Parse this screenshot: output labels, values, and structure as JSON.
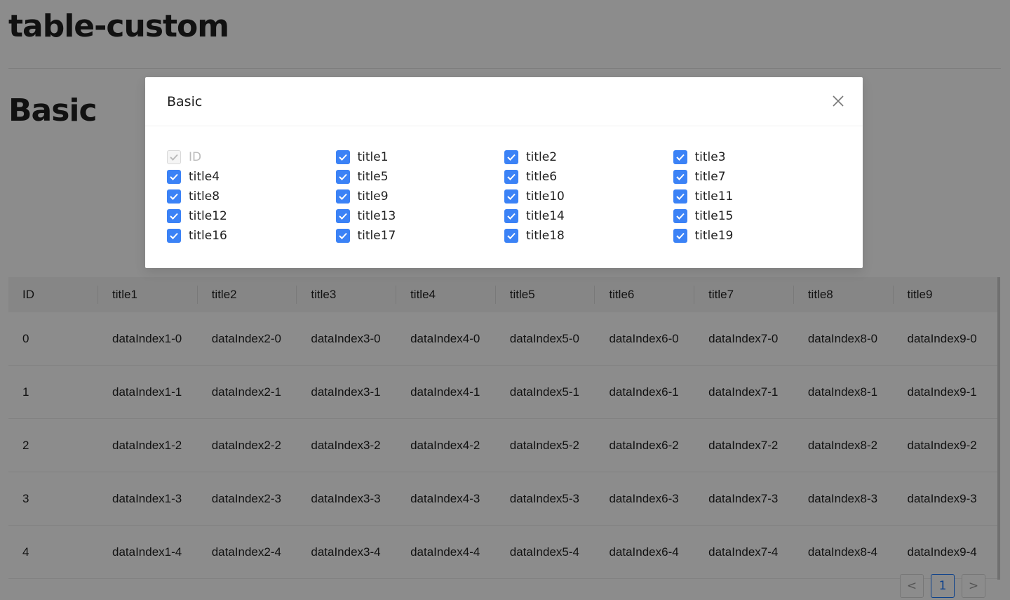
{
  "page": {
    "title": "table-custom",
    "section": "Basic"
  },
  "table": {
    "columns": [
      "ID",
      "title1",
      "title2",
      "title3",
      "title4",
      "title5",
      "title6",
      "title7",
      "title8",
      "title9"
    ],
    "rows": [
      [
        "0",
        "dataIndex1-0",
        "dataIndex2-0",
        "dataIndex3-0",
        "dataIndex4-0",
        "dataIndex5-0",
        "dataIndex6-0",
        "dataIndex7-0",
        "dataIndex8-0",
        "dataIndex9-0"
      ],
      [
        "1",
        "dataIndex1-1",
        "dataIndex2-1",
        "dataIndex3-1",
        "dataIndex4-1",
        "dataIndex5-1",
        "dataIndex6-1",
        "dataIndex7-1",
        "dataIndex8-1",
        "dataIndex9-1"
      ],
      [
        "2",
        "dataIndex1-2",
        "dataIndex2-2",
        "dataIndex3-2",
        "dataIndex4-2",
        "dataIndex5-2",
        "dataIndex6-2",
        "dataIndex7-2",
        "dataIndex8-2",
        "dataIndex9-2"
      ],
      [
        "3",
        "dataIndex1-3",
        "dataIndex2-3",
        "dataIndex3-3",
        "dataIndex4-3",
        "dataIndex5-3",
        "dataIndex6-3",
        "dataIndex7-3",
        "dataIndex8-3",
        "dataIndex9-3"
      ],
      [
        "4",
        "dataIndex1-4",
        "dataIndex2-4",
        "dataIndex3-4",
        "dataIndex4-4",
        "dataIndex5-4",
        "dataIndex6-4",
        "dataIndex7-4",
        "dataIndex8-4",
        "dataIndex9-4"
      ]
    ]
  },
  "pagination": {
    "prev": "<",
    "current": "1",
    "next": ">"
  },
  "modal": {
    "title": "Basic",
    "close_icon": "close-icon",
    "accent": "#3b82f6",
    "options": [
      {
        "label": "ID",
        "checked": true,
        "disabled": true
      },
      {
        "label": "title1",
        "checked": true
      },
      {
        "label": "title2",
        "checked": true
      },
      {
        "label": "title3",
        "checked": true
      },
      {
        "label": "title4",
        "checked": true
      },
      {
        "label": "title5",
        "checked": true
      },
      {
        "label": "title6",
        "checked": true
      },
      {
        "label": "title7",
        "checked": true
      },
      {
        "label": "title8",
        "checked": true
      },
      {
        "label": "title9",
        "checked": true
      },
      {
        "label": "title10",
        "checked": true
      },
      {
        "label": "title11",
        "checked": true
      },
      {
        "label": "title12",
        "checked": true
      },
      {
        "label": "title13",
        "checked": true
      },
      {
        "label": "title14",
        "checked": true
      },
      {
        "label": "title15",
        "checked": true
      },
      {
        "label": "title16",
        "checked": true
      },
      {
        "label": "title17",
        "checked": true
      },
      {
        "label": "title18",
        "checked": true
      },
      {
        "label": "title19",
        "checked": true
      }
    ]
  }
}
